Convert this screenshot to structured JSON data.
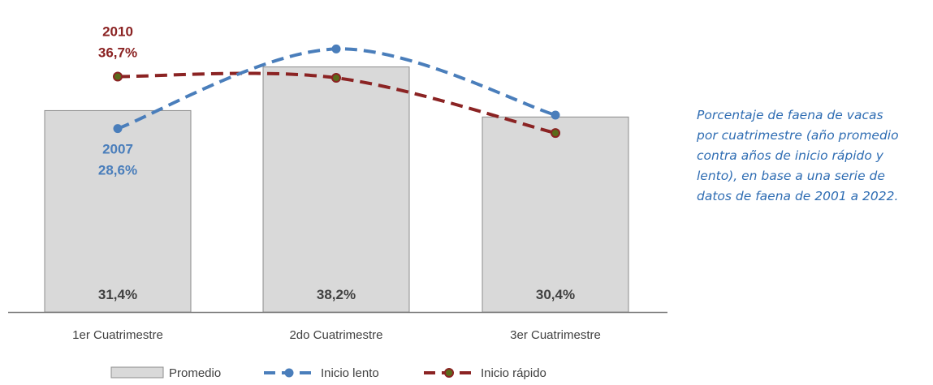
{
  "chart_data": {
    "type": "bar+line",
    "title": "",
    "xlabel": "",
    "ylabel": "",
    "ylim": [
      0,
      48
    ],
    "grid": false,
    "legend_position": "bottom-center",
    "categories": [
      "1er Cuatrimestre",
      "2do Cuatrimestre",
      "3er Cuatrimestre"
    ],
    "series": [
      {
        "name": "Promedio",
        "kind": "bar",
        "values": [
          31.4,
          38.2,
          30.4
        ],
        "value_labels": [
          "31,4%",
          "38,2%",
          "30,4%"
        ],
        "color": "#D9D9D9"
      },
      {
        "name": "Inicio lento",
        "kind": "line",
        "dash": true,
        "values": [
          28.6,
          41.0,
          30.7
        ],
        "color": "#4A7EBB"
      },
      {
        "name": "Inicio rápido",
        "kind": "line",
        "dash": true,
        "values": [
          36.7,
          36.5,
          27.9
        ],
        "color": "#8B2323",
        "marker_color": "#5A6B1A"
      }
    ],
    "annotations": [
      {
        "series": "Inicio lento",
        "index": 0,
        "year": "2007",
        "value": "28,6%",
        "color": "#4A7EBB"
      },
      {
        "series": "Inicio rápido",
        "index": 0,
        "year": "2010",
        "value": "36,7%",
        "color": "#8B2323"
      }
    ]
  },
  "caption": [
    "Porcentaje de faena de vacas",
    "por cuatrimestre (año promedio",
    "contra años de inicio rápido y",
    "lento), en base a una serie de",
    "datos de faena de 2001 a 2022."
  ]
}
